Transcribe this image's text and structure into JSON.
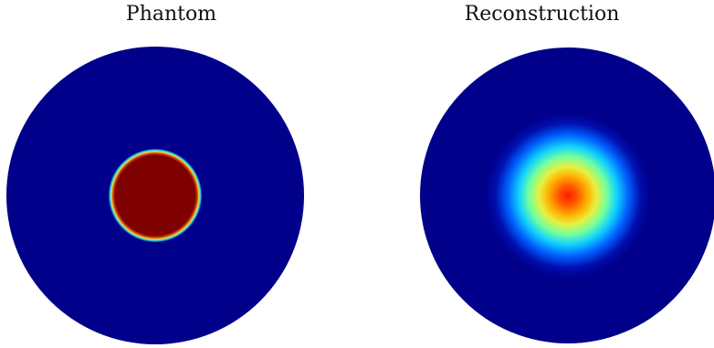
{
  "panels": [
    {
      "title": "Phantom"
    },
    {
      "title": "Reconstruction"
    }
  ],
  "colors": {
    "background_disk": "#00008b",
    "inclusion": "#7f0000",
    "inclusion_edge_cyan": "#33ccdd",
    "inclusion_edge_yellow": "#e5e536",
    "recon_peak": "#ff2200"
  }
}
